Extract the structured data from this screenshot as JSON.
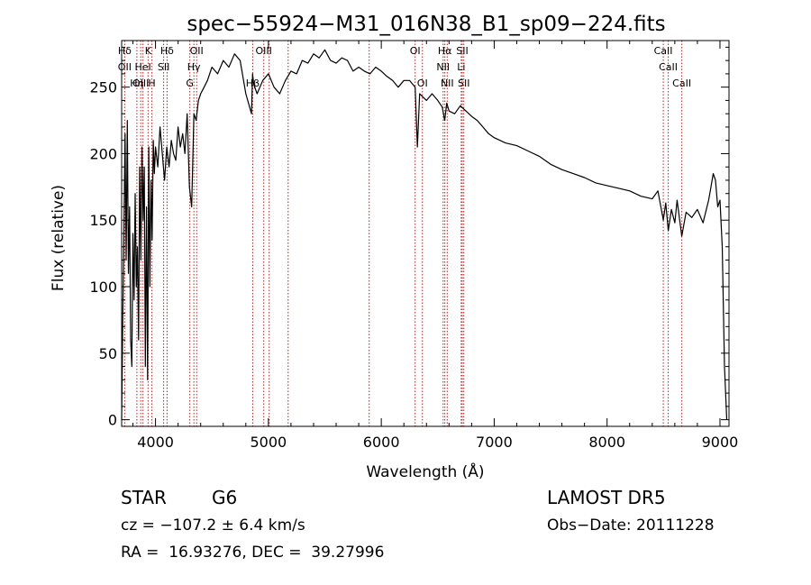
{
  "chart_data": {
    "type": "line",
    "title": "spec−55924−M31_016N38_B1_sp09−224.fits",
    "xlabel": "Wavelength (Å)",
    "ylabel": "Flux (relative)",
    "xlim": [
      3700,
      9080
    ],
    "ylim": [
      -5,
      285
    ],
    "x_ticks": [
      4000,
      5000,
      6000,
      7000,
      8000,
      9000
    ],
    "y_ticks": [
      0,
      50,
      100,
      150,
      200,
      250
    ],
    "grid": false,
    "line_color": "#000000",
    "marker_line_color": "#b22222",
    "series": [
      {
        "x": [
          3700,
          3710,
          3720,
          3730,
          3740,
          3750,
          3760,
          3770,
          3780,
          3790,
          3800,
          3810,
          3820,
          3830,
          3840,
          3850,
          3860,
          3870,
          3880,
          3890,
          3900,
          3910,
          3920,
          3930,
          3940,
          3950,
          3960,
          3970,
          3980,
          3990,
          4000,
          4020,
          4040,
          4060,
          4080,
          4100,
          4120,
          4140,
          4160,
          4180,
          4200,
          4220,
          4240,
          4260,
          4280,
          4300,
          4320,
          4340,
          4360,
          4380,
          4400,
          4430,
          4460,
          4500,
          4550,
          4600,
          4650,
          4700,
          4750,
          4800,
          4850,
          4860,
          4870,
          4900,
          4950,
          5000,
          5050,
          5100,
          5150,
          5200,
          5250,
          5300,
          5350,
          5400,
          5450,
          5500,
          5550,
          5600,
          5650,
          5700,
          5750,
          5800,
          5850,
          5900,
          5950,
          6000,
          6050,
          6100,
          6150,
          6200,
          6250,
          6300,
          6320,
          6340,
          6400,
          6450,
          6500,
          6540,
          6562,
          6580,
          6600,
          6650,
          6700,
          6750,
          6800,
          6850,
          6900,
          6950,
          7000,
          7100,
          7200,
          7300,
          7400,
          7500,
          7600,
          7700,
          7800,
          7900,
          8000,
          8100,
          8200,
          8300,
          8400,
          8450,
          8498,
          8520,
          8542,
          8570,
          8600,
          8620,
          8662,
          8700,
          8750,
          8800,
          8850,
          8900,
          8920,
          8940,
          8960,
          8980,
          9000,
          9020,
          9040,
          9060
        ],
        "y": [
          0,
          80,
          140,
          215,
          120,
          225,
          110,
          160,
          60,
          40,
          140,
          90,
          170,
          100,
          130,
          60,
          190,
          120,
          205,
          150,
          190,
          40,
          160,
          30,
          205,
          100,
          180,
          135,
          210,
          185,
          205,
          190,
          220,
          200,
          180,
          205,
          190,
          210,
          200,
          195,
          220,
          205,
          215,
          200,
          230,
          175,
          160,
          230,
          225,
          240,
          245,
          250,
          255,
          265,
          260,
          270,
          265,
          275,
          270,
          245,
          230,
          260,
          252,
          245,
          255,
          260,
          250,
          245,
          255,
          262,
          260,
          270,
          268,
          275,
          272,
          278,
          270,
          268,
          272,
          270,
          262,
          265,
          262,
          260,
          265,
          262,
          258,
          255,
          250,
          255,
          255,
          250,
          205,
          245,
          240,
          245,
          240,
          235,
          225,
          238,
          232,
          230,
          236,
          232,
          228,
          225,
          220,
          215,
          212,
          208,
          206,
          202,
          198,
          192,
          188,
          185,
          182,
          178,
          176,
          174,
          172,
          168,
          166,
          172,
          150,
          163,
          142,
          158,
          148,
          165,
          138,
          156,
          152,
          158,
          148,
          165,
          175,
          185,
          180,
          160,
          165,
          130,
          40,
          0
        ]
      }
    ],
    "spectral_lines": [
      {
        "label": "Hδ",
        "wavelength": 3727,
        "row": 0
      },
      {
        "label": "K",
        "wavelength": 3934,
        "row": 0
      },
      {
        "label": "Hδ",
        "wavelength": 4102,
        "row": 0
      },
      {
        "label": "OII",
        "wavelength": 4364,
        "row": 0
      },
      {
        "label": "OIII",
        "wavelength": 4959,
        "row": 0
      },
      {
        "label": "OI",
        "wavelength": 6300,
        "row": 0
      },
      {
        "label": "Hα",
        "wavelength": 6563,
        "row": 0
      },
      {
        "label": "SII",
        "wavelength": 6717,
        "row": 0
      },
      {
        "label": "CaII",
        "wavelength": 8498,
        "row": 0
      },
      {
        "label": "OII",
        "wavelength": 3727,
        "row": 1
      },
      {
        "label": "HeI",
        "wavelength": 3889,
        "row": 1
      },
      {
        "label": "SII",
        "wavelength": 4072,
        "row": 1
      },
      {
        "label": "Hγ",
        "wavelength": 4340,
        "row": 1
      },
      {
        "label": "NII",
        "wavelength": 6548,
        "row": 1
      },
      {
        "label": "Li",
        "wavelength": 6708,
        "row": 1
      },
      {
        "label": "CaII",
        "wavelength": 8542,
        "row": 1
      },
      {
        "label": "OIII",
        "wavelength": 3869,
        "row": 2
      },
      {
        "label": "Hη",
        "wavelength": 3835,
        "row": 2
      },
      {
        "label": "H",
        "wavelength": 3968,
        "row": 2
      },
      {
        "label": "G",
        "wavelength": 4304,
        "row": 2
      },
      {
        "label": "Hβ",
        "wavelength": 4861,
        "row": 2
      },
      {
        "label": "OI",
        "wavelength": 6364,
        "row": 2
      },
      {
        "label": "NII",
        "wavelength": 6584,
        "row": 2
      },
      {
        "label": "SII",
        "wavelength": 6731,
        "row": 2
      },
      {
        "label": "CaII",
        "wavelength": 8662,
        "row": 2
      }
    ],
    "extra_marker_lines": [
      5007,
      5175,
      5893
    ]
  },
  "info": {
    "class": "STAR",
    "subclass": "G6",
    "survey": "LAMOST DR5",
    "cz_line": "cz = −107.2 ± 6.4 km/s",
    "obs_date": "Obs−Date: 20111228",
    "coords": "RA =  16.93276, DEC =  39.27996"
  }
}
